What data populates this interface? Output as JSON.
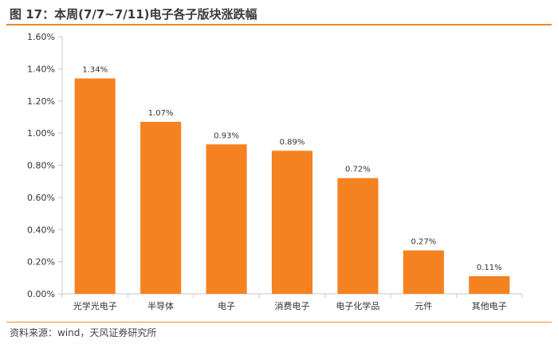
{
  "header": {
    "title": "图 17：本周(7/7~7/11)电子各子版块涨跌幅"
  },
  "footer": {
    "source": "资料来源：wind，天风证券研究所"
  },
  "colors": {
    "bar": "#f58220",
    "accent_rule": "#f0892a",
    "axis": "#c8c8c8"
  },
  "chart_data": {
    "type": "bar",
    "title": "",
    "xlabel": "",
    "ylabel": "",
    "categories": [
      "光学光电子",
      "半导体",
      "电子",
      "消费电子",
      "电子化学品",
      "元件",
      "其他电子"
    ],
    "values": [
      1.34,
      1.07,
      0.93,
      0.89,
      0.72,
      0.27,
      0.11
    ],
    "data_labels": [
      "1.34%",
      "1.07%",
      "0.93%",
      "0.89%",
      "0.72%",
      "0.27%",
      "0.11%"
    ],
    "ylim": [
      0,
      1.6
    ],
    "yticks": [
      0,
      0.2,
      0.4,
      0.6,
      0.8,
      1.0,
      1.2,
      1.4,
      1.6
    ],
    "ytick_labels": [
      "0.00%",
      "0.20%",
      "0.40%",
      "0.60%",
      "0.80%",
      "1.00%",
      "1.20%",
      "1.40%",
      "1.60%"
    ],
    "grid": false,
    "legend": "none"
  }
}
